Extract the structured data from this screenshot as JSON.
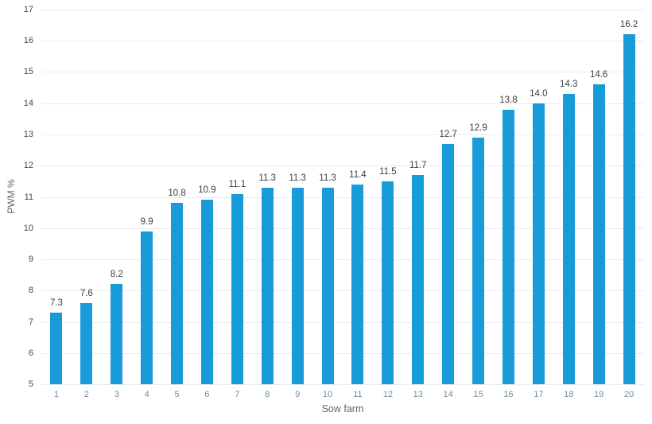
{
  "chart_data": {
    "type": "bar",
    "title": "",
    "xlabel": "Sow farm",
    "ylabel": "PWM %",
    "categories": [
      "1",
      "2",
      "3",
      "4",
      "5",
      "6",
      "7",
      "8",
      "9",
      "10",
      "11",
      "12",
      "13",
      "14",
      "15",
      "16",
      "17",
      "18",
      "19",
      "20"
    ],
    "values": [
      7.3,
      7.6,
      8.2,
      9.9,
      10.8,
      10.9,
      11.1,
      11.3,
      11.3,
      11.3,
      11.4,
      11.5,
      11.7,
      12.7,
      12.9,
      13.8,
      14.0,
      14.3,
      14.6,
      16.2
    ],
    "value_labels": [
      "7.3",
      "7.6",
      "8.2",
      "9.9",
      "10.8",
      "10.9",
      "11.1",
      "11.3",
      "11.3",
      "11.3",
      "11.4",
      "11.5",
      "11.7",
      "12.7",
      "12.9",
      "13.8",
      "14.0",
      "14.3",
      "14.6",
      "16.2"
    ],
    "ylim": [
      5,
      17
    ],
    "ytick_step": 1,
    "ytick_labels": [
      "5",
      "6",
      "7",
      "8",
      "9",
      "10",
      "11",
      "12",
      "13",
      "14",
      "15",
      "16",
      "17"
    ],
    "grid": true,
    "legend_position": "none",
    "colors": {
      "bar": "#189CD9",
      "grid": "#e8ecee",
      "y_tick": "#464646",
      "x_tick": "#7d8994",
      "value_label": "#3d3d3d",
      "axis_title": "#5a6672",
      "background": "#ffffff"
    }
  }
}
